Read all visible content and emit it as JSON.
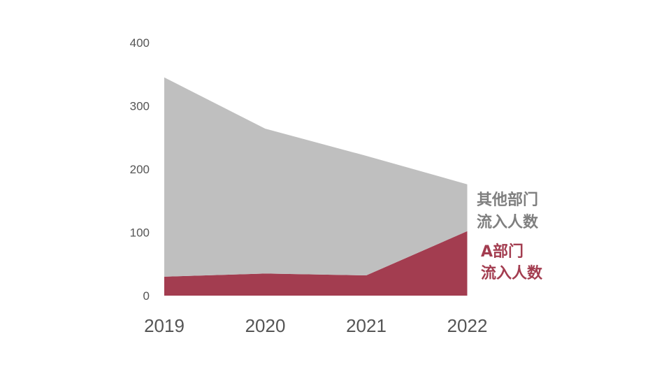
{
  "chart_data": {
    "type": "area",
    "stacked": true,
    "categories": [
      "2019",
      "2020",
      "2021",
      "2022"
    ],
    "ylim": [
      0,
      400
    ],
    "yticks": [
      "0",
      "100",
      "200",
      "300",
      "400"
    ],
    "grid": false,
    "series": [
      {
        "key": "a",
        "values": [
          30,
          35,
          32,
          102
        ],
        "color": "#a33d50"
      },
      {
        "key": "other",
        "values": [
          315,
          229,
          189,
          74
        ],
        "color": "#bfbfbf"
      }
    ],
    "labels": {
      "other": [
        "其他部门",
        "流入人数"
      ],
      "a": [
        "A部门",
        "流入人数"
      ]
    },
    "label_colors": {
      "other": "#7f7f7f",
      "a": "#a33d50"
    }
  }
}
